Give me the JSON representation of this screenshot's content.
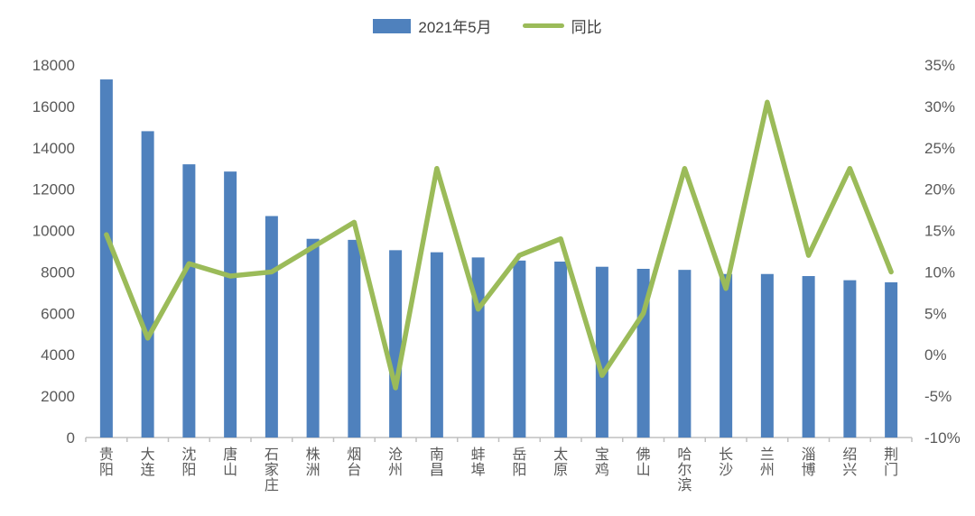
{
  "legend": {
    "bar_label": "2021年5月",
    "line_label": "同比"
  },
  "colors": {
    "bar": "#4f81bd",
    "line": "#9bbb59",
    "axis_text": "#595959",
    "axis_line": "#bfbfbf"
  },
  "chart_data": {
    "type": "bar",
    "subtype": "bar-and-line-dual-axis",
    "title": "",
    "legend_position": "top",
    "grid": false,
    "categories": [
      "贵阳",
      "大连",
      "沈阳",
      "唐山",
      "石家庄",
      "株洲",
      "烟台",
      "沧州",
      "南昌",
      "蚌埠",
      "岳阳",
      "太原",
      "宝鸡",
      "佛山",
      "哈尔滨",
      "长沙",
      "兰州",
      "淄博",
      "绍兴",
      "荆门"
    ],
    "series": [
      {
        "name": "2021年5月",
        "type": "bar",
        "axis": "left",
        "values": [
          17300,
          14800,
          13200,
          12850,
          10700,
          9600,
          9550,
          9050,
          8950,
          8700,
          8550,
          8500,
          8250,
          8150,
          8100,
          7900,
          7900,
          7800,
          7600,
          7500
        ]
      },
      {
        "name": "同比",
        "type": "line",
        "axis": "right",
        "unit": "%",
        "values": [
          14.5,
          2,
          11,
          9.5,
          10,
          13,
          16,
          -4,
          22.5,
          5.5,
          12,
          14,
          -2.5,
          5,
          22.5,
          8,
          30.5,
          12,
          22.5,
          10
        ]
      }
    ],
    "left_axis": {
      "min": 0,
      "max": 18000,
      "step": 2000
    },
    "right_axis": {
      "min": -10,
      "max": 35,
      "step": 5,
      "format": "percent"
    }
  }
}
